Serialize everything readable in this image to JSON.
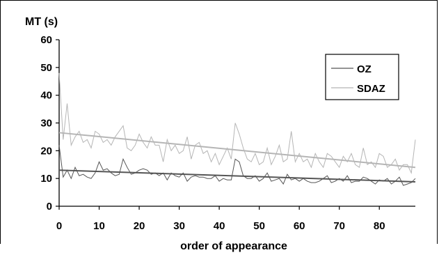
{
  "chart_data": {
    "type": "line",
    "title": "",
    "ylabel": "MT (s)",
    "xlabel": "order of appearance",
    "xlim": [
      0,
      89
    ],
    "ylim": [
      0,
      60
    ],
    "x_ticks": [
      0,
      10,
      20,
      30,
      40,
      50,
      60,
      70,
      80
    ],
    "y_ticks": [
      0,
      10,
      20,
      30,
      40,
      50,
      60
    ],
    "grid": false,
    "legend_position": "top-right",
    "series": [
      {
        "name": "OZ",
        "color": "#555555",
        "x_start": 0,
        "values": [
          22,
          10.5,
          13,
          10,
          14,
          11,
          11.5,
          10.5,
          10,
          12,
          16,
          13,
          13.5,
          12,
          11,
          11.5,
          17,
          14,
          11.5,
          12,
          13,
          13.5,
          13,
          11.5,
          12,
          11,
          12,
          9.5,
          12,
          11,
          10.5,
          12,
          9,
          10.5,
          11,
          10.5,
          10.5,
          10,
          10,
          11,
          9,
          10,
          9.5,
          9.5,
          17,
          16,
          11,
          10,
          10,
          11,
          9,
          10,
          12,
          9,
          9.5,
          10,
          8,
          11.5,
          9.5,
          10,
          9,
          10,
          9,
          8.5,
          8.5,
          9,
          10,
          11,
          8.5,
          9,
          10,
          9,
          11,
          8.5,
          9,
          9,
          10.5,
          10,
          9,
          8,
          9.5,
          9,
          10,
          8,
          9,
          10.5,
          7.5,
          8,
          8.5,
          10
        ],
        "trend": [
          13,
          8.8
        ]
      },
      {
        "name": "SDAZ",
        "color": "#b5b5b5",
        "x_start": 0,
        "values": [
          48,
          24,
          37,
          22,
          25,
          27,
          23,
          24,
          21,
          27,
          26,
          23,
          24,
          22,
          25,
          27,
          29,
          21,
          20,
          22,
          26,
          23,
          21,
          25,
          22,
          22,
          16,
          24,
          20,
          22,
          19,
          20,
          25,
          17,
          22,
          23,
          19,
          20,
          16,
          19,
          15,
          18,
          21,
          17,
          30,
          26,
          21,
          17,
          16,
          19,
          15,
          16,
          21,
          15,
          18,
          22,
          16,
          17,
          27,
          16,
          19,
          16,
          17,
          14,
          19,
          16,
          14,
          19,
          18,
          16,
          14,
          18,
          16,
          19,
          15,
          14,
          21,
          15,
          16,
          14,
          19,
          18,
          14,
          15,
          17,
          13,
          15,
          15,
          12,
          24
        ],
        "trend": [
          26.5,
          14
        ]
      }
    ]
  }
}
